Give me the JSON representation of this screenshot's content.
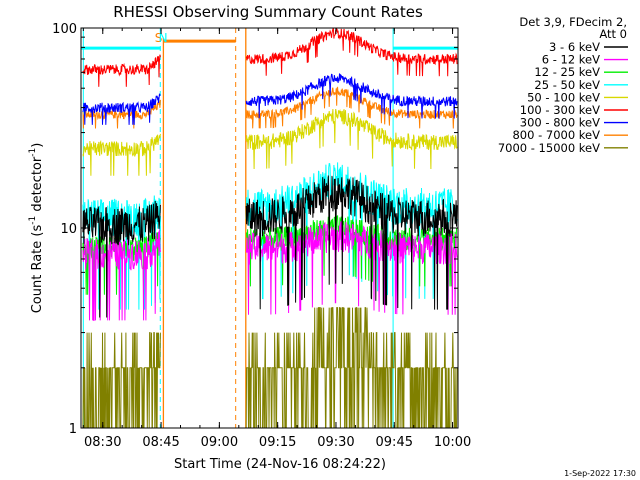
{
  "chart_data": {
    "type": "line",
    "title": "RHESSI Observing Summary Count Rates",
    "xlabel": "Start Time (24-Nov-16 08:24:22)",
    "ylabel_main": "Count Rate (s",
    "ylabel_sup1": "-1",
    "ylabel_mid": " detector",
    "ylabel_sup2": "-1",
    "ylabel_end": ")",
    "yscale": "log",
    "ylim": [
      1,
      100
    ],
    "xlim_minutes": [
      0,
      97
    ],
    "x_ticks": [
      {
        "label": "08:30",
        "t": 5.6
      },
      {
        "label": "08:45",
        "t": 20.6
      },
      {
        "label": "09:00",
        "t": 35.6
      },
      {
        "label": "09:15",
        "t": 50.6
      },
      {
        "label": "09:30",
        "t": 65.6
      },
      {
        "label": "09:45",
        "t": 80.6
      },
      {
        "label": "10:00",
        "t": 95.6
      }
    ],
    "y_ticks": [
      {
        "label": "1",
        "v": 1
      },
      {
        "label": "10",
        "v": 10
      },
      {
        "label": "100",
        "v": 100
      }
    ],
    "legend": {
      "header": [
        "Det 3,9, FDecim 2,",
        "Att 0"
      ],
      "placement": "right"
    },
    "series": [
      {
        "name": "3 - 6 keV",
        "color": "#000000",
        "before": 10.5,
        "after": 11.5,
        "peak": 1.35
      },
      {
        "name": "6 - 12 keV",
        "color": "#ff00ff",
        "before": 7.5,
        "after": 8.0,
        "peak": 1.15
      },
      {
        "name": "12 - 25 keV",
        "color": "#00ee00",
        "before": 8.0,
        "after": 8.8,
        "peak": 1.15
      },
      {
        "name": "25 - 50 keV",
        "color": "#00ffff",
        "before": 11.5,
        "after": 13.0,
        "peak": 1.35
      },
      {
        "name": "50 - 100 keV",
        "color": "#d8d800",
        "before": 25.0,
        "after": 27.0,
        "peak": 1.35
      },
      {
        "name": "100 - 300 keV",
        "color": "#ff0000",
        "before": 62.0,
        "after": 70.0,
        "peak": 1.35
      },
      {
        "name": "300 - 800 keV",
        "color": "#0000ff",
        "before": 40.0,
        "after": 43.0,
        "peak": 1.3
      },
      {
        "name": "800 - 7000 keV",
        "color": "#ff8000",
        "before": 37.0,
        "after": 37.0,
        "peak": 1.3
      },
      {
        "name": "7000 - 15000 keV",
        "color": "#808000",
        "before": 1.6,
        "after": 2.0,
        "peak": 1.0
      }
    ],
    "markers": [
      {
        "type": "saa_flag",
        "label": "S",
        "t": 20.0,
        "color": "#ff8000"
      },
      {
        "type": "night_flag",
        "label": "N",
        "t": 21.0,
        "color": "#00ffff"
      }
    ],
    "gaps": {
      "night_start": 20.5,
      "night_end": 43.3,
      "night_level": 85,
      "saa_solid_start": 21.2,
      "saa_solid_end": 42.4,
      "cyan_solid": [
        0.6,
        80.3
      ],
      "cyan_dashed": [
        20.4,
        97.0
      ],
      "orange_dashed": [
        39.8,
        42.4
      ]
    },
    "grid": false
  },
  "footer": {
    "timestamp": "1-Sep-2022 17:30"
  }
}
